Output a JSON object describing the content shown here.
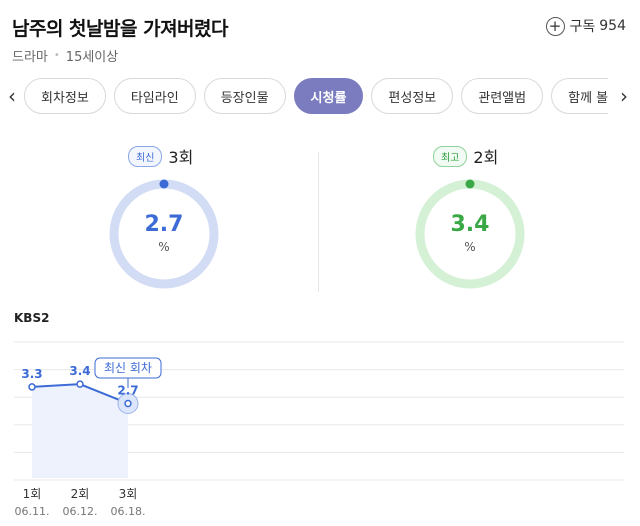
{
  "header": {
    "title": "남주의 첫날밤을 가져버렸다",
    "genre": "드라마",
    "rating": "15세이상",
    "subscribe_label": "구독",
    "subscribe_count": "954"
  },
  "tabs": [
    {
      "label": "회차정보"
    },
    {
      "label": "타임라인"
    },
    {
      "label": "등장인물"
    },
    {
      "label": "시청률",
      "active": true
    },
    {
      "label": "편성정보"
    },
    {
      "label": "관련앨범"
    },
    {
      "label": "함께 볼만한"
    }
  ],
  "gauges": {
    "latest": {
      "badge": "최신",
      "episode": "3회",
      "value": "2.7",
      "unit": "%",
      "color": "#3d6bd6",
      "track": "#d3dcf5"
    },
    "highest": {
      "badge": "최고",
      "episode": "2회",
      "value": "3.4",
      "unit": "%",
      "color": "#3aa845",
      "track": "#d4f0d5"
    }
  },
  "chart": {
    "channel": "KBS2",
    "callout": "최신 회차"
  },
  "chart_data": {
    "type": "area",
    "x": [
      "1회",
      "2회",
      "3회"
    ],
    "dates": [
      "06.11.",
      "06.12.",
      "06.18."
    ],
    "values": [
      3.3,
      3.4,
      2.7
    ],
    "value_labels": [
      "3.3",
      "3.4",
      "2.7"
    ],
    "ylim": [
      0,
      5
    ],
    "line_color": "#3d6bd6",
    "fill_color": "#eef2fd",
    "grid": true
  }
}
